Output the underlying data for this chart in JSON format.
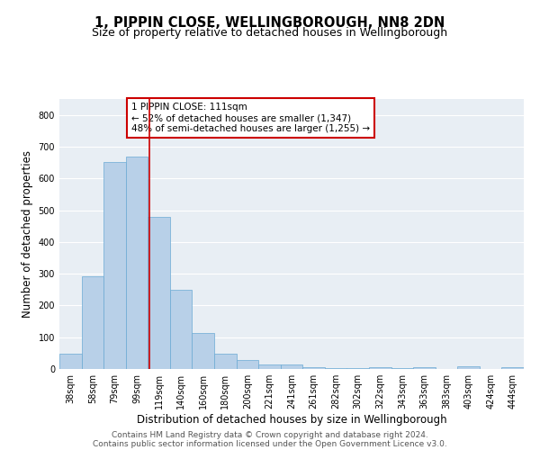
{
  "title": "1, PIPPIN CLOSE, WELLINGBOROUGH, NN8 2DN",
  "subtitle": "Size of property relative to detached houses in Wellingborough",
  "xlabel": "Distribution of detached houses by size in Wellingborough",
  "ylabel": "Number of detached properties",
  "categories": [
    "38sqm",
    "58sqm",
    "79sqm",
    "99sqm",
    "119sqm",
    "140sqm",
    "160sqm",
    "180sqm",
    "200sqm",
    "221sqm",
    "241sqm",
    "261sqm",
    "282sqm",
    "302sqm",
    "322sqm",
    "343sqm",
    "363sqm",
    "383sqm",
    "403sqm",
    "424sqm",
    "444sqm"
  ],
  "values": [
    48,
    292,
    653,
    668,
    478,
    250,
    113,
    48,
    28,
    15,
    14,
    5,
    4,
    2,
    6,
    3,
    5,
    0,
    8,
    0,
    7
  ],
  "bar_color": "#b8d0e8",
  "bar_edge_color": "#6aaad4",
  "vline_x_index": 3.55,
  "vline_color": "#cc0000",
  "annotation_title": "1 PIPPIN CLOSE: 111sqm",
  "annotation_line2": "← 52% of detached houses are smaller (1,347)",
  "annotation_line3": "48% of semi-detached houses are larger (1,255) →",
  "annotation_box_color": "#cc0000",
  "ylim": [
    0,
    850
  ],
  "yticks": [
    0,
    100,
    200,
    300,
    400,
    500,
    600,
    700,
    800
  ],
  "footer_line1": "Contains HM Land Registry data © Crown copyright and database right 2024.",
  "footer_line2": "Contains public sector information licensed under the Open Government Licence v3.0.",
  "bg_color": "#ffffff",
  "plot_bg_color": "#e8eef4",
  "grid_color": "#ffffff",
  "title_fontsize": 10.5,
  "subtitle_fontsize": 9,
  "axis_label_fontsize": 8.5,
  "tick_fontsize": 7,
  "annotation_fontsize": 7.5,
  "footer_fontsize": 6.5
}
